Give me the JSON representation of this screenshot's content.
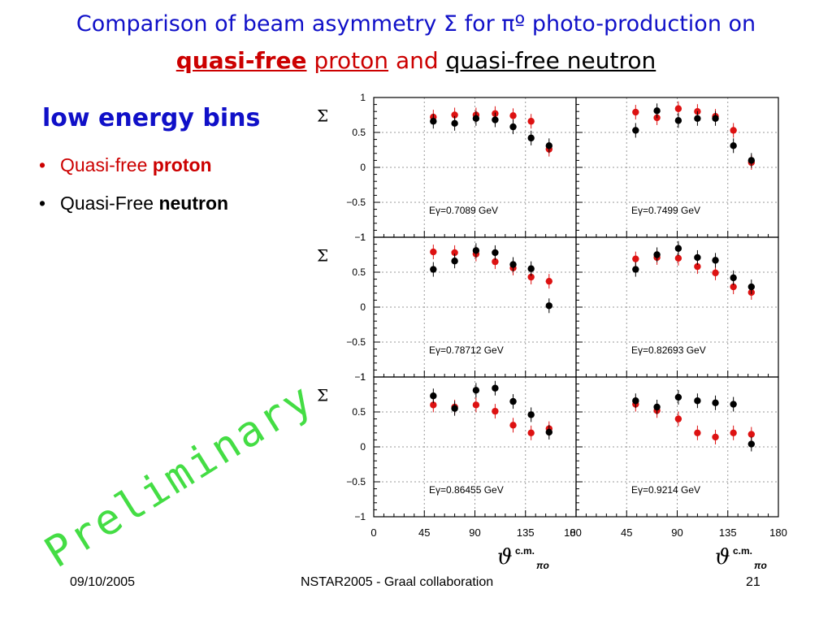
{
  "title": {
    "line1": "Comparison of beam asymmetry Σ for πº photo-production on",
    "qf_proton_a": "quasi-free",
    "qf_proton_b": "proton",
    "and": "and",
    "qf_neutron": "quasi-free neutron"
  },
  "subtitle": "low energy bins",
  "bullets": [
    {
      "marker": "•",
      "text": "Quasi-free ",
      "bold": "proton",
      "color": "#cc0000"
    },
    {
      "marker": "•",
      "text": "Quasi-Free ",
      "bold": "neutron",
      "color": "#000000"
    }
  ],
  "watermark": "Preliminary",
  "footer": {
    "date": "09/10/2005",
    "center": "NSTAR2005 - Graal collaboration",
    "page": "21"
  },
  "chart_data": {
    "type": "scatter",
    "ylabel": "Σ",
    "xlabel": "ϑ",
    "xlabel_sup": "c.m.",
    "xlabel_sub": "πo",
    "xlim": [
      0,
      180
    ],
    "ylim": [
      -1,
      1
    ],
    "xticks": [
      0,
      45,
      90,
      135,
      180
    ],
    "xtick_labels": [
      "0",
      "45",
      "90",
      "135",
      "180"
    ],
    "yticks": [
      1,
      0.5,
      0,
      -0.5,
      -1
    ],
    "ytick_labels": [
      "1",
      "0.5",
      "0",
      "−0.5",
      "−1"
    ],
    "grid": true,
    "colors": {
      "proton": "#dd1111",
      "neutron": "#000000"
    },
    "panels": [
      {
        "label": "Eγ=0.7089 GeV",
        "proton": {
          "x": [
            53,
            72,
            91,
            108,
            124,
            140,
            156
          ],
          "y": [
            0.72,
            0.75,
            0.75,
            0.77,
            0.74,
            0.66,
            0.26
          ]
        },
        "neutron": {
          "x": [
            53,
            72,
            91,
            108,
            124,
            140,
            156
          ],
          "y": [
            0.66,
            0.63,
            0.7,
            0.68,
            0.58,
            0.42,
            0.31
          ]
        }
      },
      {
        "label": "Eγ=0.7499 GeV",
        "proton": {
          "x": [
            53,
            72,
            91,
            108,
            124,
            140,
            156
          ],
          "y": [
            0.79,
            0.71,
            0.84,
            0.8,
            0.73,
            0.53,
            0.07
          ]
        },
        "neutron": {
          "x": [
            53,
            72,
            91,
            108,
            124,
            140,
            156
          ],
          "y": [
            0.53,
            0.81,
            0.67,
            0.7,
            0.7,
            0.31,
            0.1
          ]
        }
      },
      {
        "label": "Eγ=0.78712 GeV",
        "proton": {
          "x": [
            53,
            72,
            91,
            108,
            124,
            140,
            156
          ],
          "y": [
            0.79,
            0.78,
            0.76,
            0.65,
            0.56,
            0.43,
            0.37
          ]
        },
        "neutron": {
          "x": [
            53,
            72,
            91,
            108,
            124,
            140,
            156
          ],
          "y": [
            0.54,
            0.66,
            0.81,
            0.78,
            0.61,
            0.55,
            0.02
          ]
        }
      },
      {
        "label": "Eγ=0.82693 GeV",
        "proton": {
          "x": [
            53,
            72,
            91,
            108,
            124,
            140,
            156
          ],
          "y": [
            0.69,
            0.71,
            0.7,
            0.58,
            0.49,
            0.29,
            0.21
          ]
        },
        "neutron": {
          "x": [
            53,
            72,
            91,
            108,
            124,
            140,
            156
          ],
          "y": [
            0.54,
            0.75,
            0.84,
            0.71,
            0.67,
            0.42,
            0.29
          ]
        }
      },
      {
        "label": "Eγ=0.86455 GeV",
        "proton": {
          "x": [
            53,
            72,
            91,
            108,
            124,
            140,
            156
          ],
          "y": [
            0.6,
            0.57,
            0.6,
            0.51,
            0.31,
            0.2,
            0.26
          ]
        },
        "neutron": {
          "x": [
            53,
            72,
            91,
            108,
            124,
            140,
            156
          ],
          "y": [
            0.73,
            0.55,
            0.81,
            0.84,
            0.65,
            0.46,
            0.21
          ]
        }
      },
      {
        "label": "Eγ=0.9214 GeV",
        "proton": {
          "x": [
            53,
            72,
            91,
            108,
            124,
            140,
            156
          ],
          "y": [
            0.61,
            0.52,
            0.4,
            0.2,
            0.14,
            0.2,
            0.18
          ]
        },
        "neutron": {
          "x": [
            53,
            72,
            91,
            108,
            124,
            140,
            156
          ],
          "y": [
            0.66,
            0.57,
            0.71,
            0.66,
            0.63,
            0.61,
            0.04
          ]
        }
      }
    ]
  }
}
